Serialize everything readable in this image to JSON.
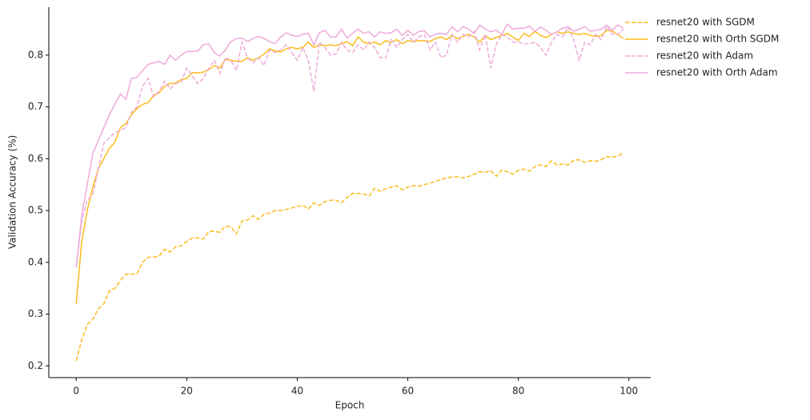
{
  "chart_data": {
    "type": "line",
    "xlabel": "Epoch",
    "ylabel": "Validation Accuracy (%)",
    "x": [
      0,
      1,
      2,
      3,
      4,
      5,
      6,
      7,
      8,
      9,
      10,
      11,
      12,
      13,
      14,
      15,
      16,
      17,
      18,
      19,
      20,
      21,
      22,
      23,
      24,
      25,
      26,
      27,
      28,
      29,
      30,
      31,
      32,
      33,
      34,
      35,
      36,
      37,
      38,
      39,
      40,
      41,
      42,
      43,
      44,
      45,
      46,
      47,
      48,
      49,
      50,
      51,
      52,
      53,
      54,
      55,
      56,
      57,
      58,
      59,
      60,
      61,
      62,
      63,
      64,
      65,
      66,
      67,
      68,
      69,
      70,
      71,
      72,
      73,
      74,
      75,
      76,
      77,
      78,
      79,
      80,
      81,
      82,
      83,
      84,
      85,
      86,
      87,
      88,
      89,
      90,
      91,
      92,
      93,
      94,
      95,
      96,
      97,
      98,
      99
    ],
    "series": [
      {
        "name": "resnet20 with SGDM",
        "color": "#fbbc1c",
        "dashed": true,
        "values": [
          0.21,
          0.25,
          0.28,
          0.29,
          0.31,
          0.32,
          0.345,
          0.35,
          0.365,
          0.377,
          0.377,
          0.378,
          0.4,
          0.41,
          0.41,
          0.412,
          0.425,
          0.42,
          0.43,
          0.432,
          0.44,
          0.447,
          0.447,
          0.445,
          0.46,
          0.46,
          0.458,
          0.47,
          0.468,
          0.455,
          0.48,
          0.482,
          0.49,
          0.483,
          0.493,
          0.495,
          0.5,
          0.5,
          0.502,
          0.505,
          0.508,
          0.51,
          0.503,
          0.515,
          0.51,
          0.517,
          0.52,
          0.52,
          0.515,
          0.525,
          0.533,
          0.533,
          0.532,
          0.528,
          0.543,
          0.537,
          0.542,
          0.545,
          0.548,
          0.54,
          0.545,
          0.548,
          0.547,
          0.55,
          0.553,
          0.556,
          0.56,
          0.563,
          0.565,
          0.565,
          0.563,
          0.566,
          0.57,
          0.575,
          0.574,
          0.577,
          0.566,
          0.578,
          0.575,
          0.57,
          0.578,
          0.58,
          0.576,
          0.585,
          0.588,
          0.585,
          0.596,
          0.588,
          0.59,
          0.588,
          0.597,
          0.598,
          0.593,
          0.596,
          0.595,
          0.598,
          0.604,
          0.603,
          0.605,
          0.612
        ]
      },
      {
        "name": "resnet20 with Orth SGDM",
        "color": "#fbbc1c",
        "dashed": false,
        "values": [
          0.32,
          0.44,
          0.5,
          0.545,
          0.58,
          0.6,
          0.62,
          0.632,
          0.66,
          0.668,
          0.685,
          0.697,
          0.705,
          0.708,
          0.722,
          0.727,
          0.74,
          0.745,
          0.746,
          0.753,
          0.755,
          0.766,
          0.766,
          0.767,
          0.772,
          0.78,
          0.775,
          0.792,
          0.79,
          0.788,
          0.788,
          0.795,
          0.79,
          0.795,
          0.802,
          0.812,
          0.808,
          0.806,
          0.812,
          0.815,
          0.812,
          0.815,
          0.825,
          0.815,
          0.82,
          0.818,
          0.82,
          0.818,
          0.822,
          0.826,
          0.818,
          0.835,
          0.825,
          0.822,
          0.825,
          0.82,
          0.828,
          0.824,
          0.83,
          0.822,
          0.828,
          0.826,
          0.828,
          0.828,
          0.826,
          0.832,
          0.835,
          0.83,
          0.838,
          0.832,
          0.836,
          0.84,
          0.835,
          0.825,
          0.838,
          0.83,
          0.834,
          0.838,
          0.842,
          0.835,
          0.828,
          0.842,
          0.836,
          0.846,
          0.838,
          0.834,
          0.84,
          0.845,
          0.842,
          0.845,
          0.842,
          0.84,
          0.842,
          0.838,
          0.836,
          0.838,
          0.848,
          0.846,
          0.84,
          0.832
        ]
      },
      {
        "name": "resnet20 with Adam",
        "color": "#eeaad9",
        "dashed": true,
        "values": [
          0.39,
          0.48,
          0.52,
          0.53,
          0.58,
          0.63,
          0.64,
          0.65,
          0.655,
          0.66,
          0.69,
          0.7,
          0.74,
          0.755,
          0.72,
          0.73,
          0.75,
          0.735,
          0.745,
          0.748,
          0.775,
          0.76,
          0.745,
          0.755,
          0.775,
          0.79,
          0.765,
          0.795,
          0.79,
          0.77,
          0.825,
          0.795,
          0.785,
          0.795,
          0.78,
          0.81,
          0.805,
          0.81,
          0.82,
          0.805,
          0.79,
          0.815,
          0.79,
          0.73,
          0.825,
          0.815,
          0.8,
          0.802,
          0.825,
          0.81,
          0.805,
          0.82,
          0.81,
          0.825,
          0.815,
          0.795,
          0.795,
          0.83,
          0.815,
          0.83,
          0.84,
          0.825,
          0.835,
          0.84,
          0.81,
          0.825,
          0.795,
          0.8,
          0.84,
          0.825,
          0.84,
          0.835,
          0.845,
          0.81,
          0.84,
          0.775,
          0.82,
          0.84,
          0.835,
          0.825,
          0.825,
          0.822,
          0.822,
          0.825,
          0.815,
          0.8,
          0.825,
          0.84,
          0.835,
          0.855,
          0.83,
          0.79,
          0.825,
          0.82,
          0.84,
          0.83,
          0.855,
          0.84,
          0.84,
          0.85
        ]
      },
      {
        "name": "resnet20 with Orth Adam",
        "color": "#eeaad9",
        "dashed": false,
        "values": [
          0.39,
          0.49,
          0.55,
          0.61,
          0.635,
          0.66,
          0.685,
          0.705,
          0.725,
          0.715,
          0.755,
          0.757,
          0.77,
          0.782,
          0.785,
          0.788,
          0.782,
          0.8,
          0.79,
          0.8,
          0.807,
          0.807,
          0.808,
          0.82,
          0.822,
          0.805,
          0.798,
          0.81,
          0.826,
          0.832,
          0.833,
          0.826,
          0.832,
          0.836,
          0.832,
          0.826,
          0.822,
          0.835,
          0.843,
          0.838,
          0.836,
          0.84,
          0.842,
          0.82,
          0.843,
          0.848,
          0.835,
          0.835,
          0.85,
          0.833,
          0.842,
          0.85,
          0.842,
          0.845,
          0.835,
          0.845,
          0.842,
          0.843,
          0.85,
          0.838,
          0.848,
          0.838,
          0.846,
          0.847,
          0.835,
          0.84,
          0.842,
          0.84,
          0.855,
          0.845,
          0.855,
          0.85,
          0.842,
          0.858,
          0.85,
          0.845,
          0.848,
          0.84,
          0.86,
          0.85,
          0.852,
          0.852,
          0.856,
          0.846,
          0.854,
          0.848,
          0.84,
          0.845,
          0.852,
          0.855,
          0.846,
          0.85,
          0.855,
          0.846,
          0.848,
          0.85,
          0.858,
          0.848,
          0.858,
          0.852
        ]
      }
    ],
    "xlim": [
      -4.95,
      103.95
    ],
    "ylim": [
      0.1775,
      0.8925
    ],
    "xticks": [
      0,
      20,
      40,
      60,
      80,
      100
    ],
    "yticks": [
      0.2,
      0.3,
      0.4,
      0.5,
      0.6,
      0.7,
      0.8
    ],
    "grid": false,
    "legend": "outside upper right"
  }
}
